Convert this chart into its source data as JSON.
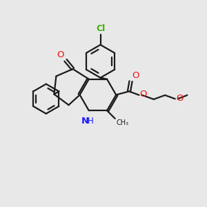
{
  "bg_color": "#e8e8e8",
  "bond_color": "#1a1a1a",
  "bond_width": 1.6,
  "N_color": "#1a1aff",
  "O_color": "#ee1111",
  "Cl_color": "#3ab200",
  "font_size": 8.5,
  "fig_size": [
    3.0,
    3.0
  ],
  "dpi": 100,
  "xlim": [
    0,
    10
  ],
  "ylim": [
    0,
    10
  ]
}
